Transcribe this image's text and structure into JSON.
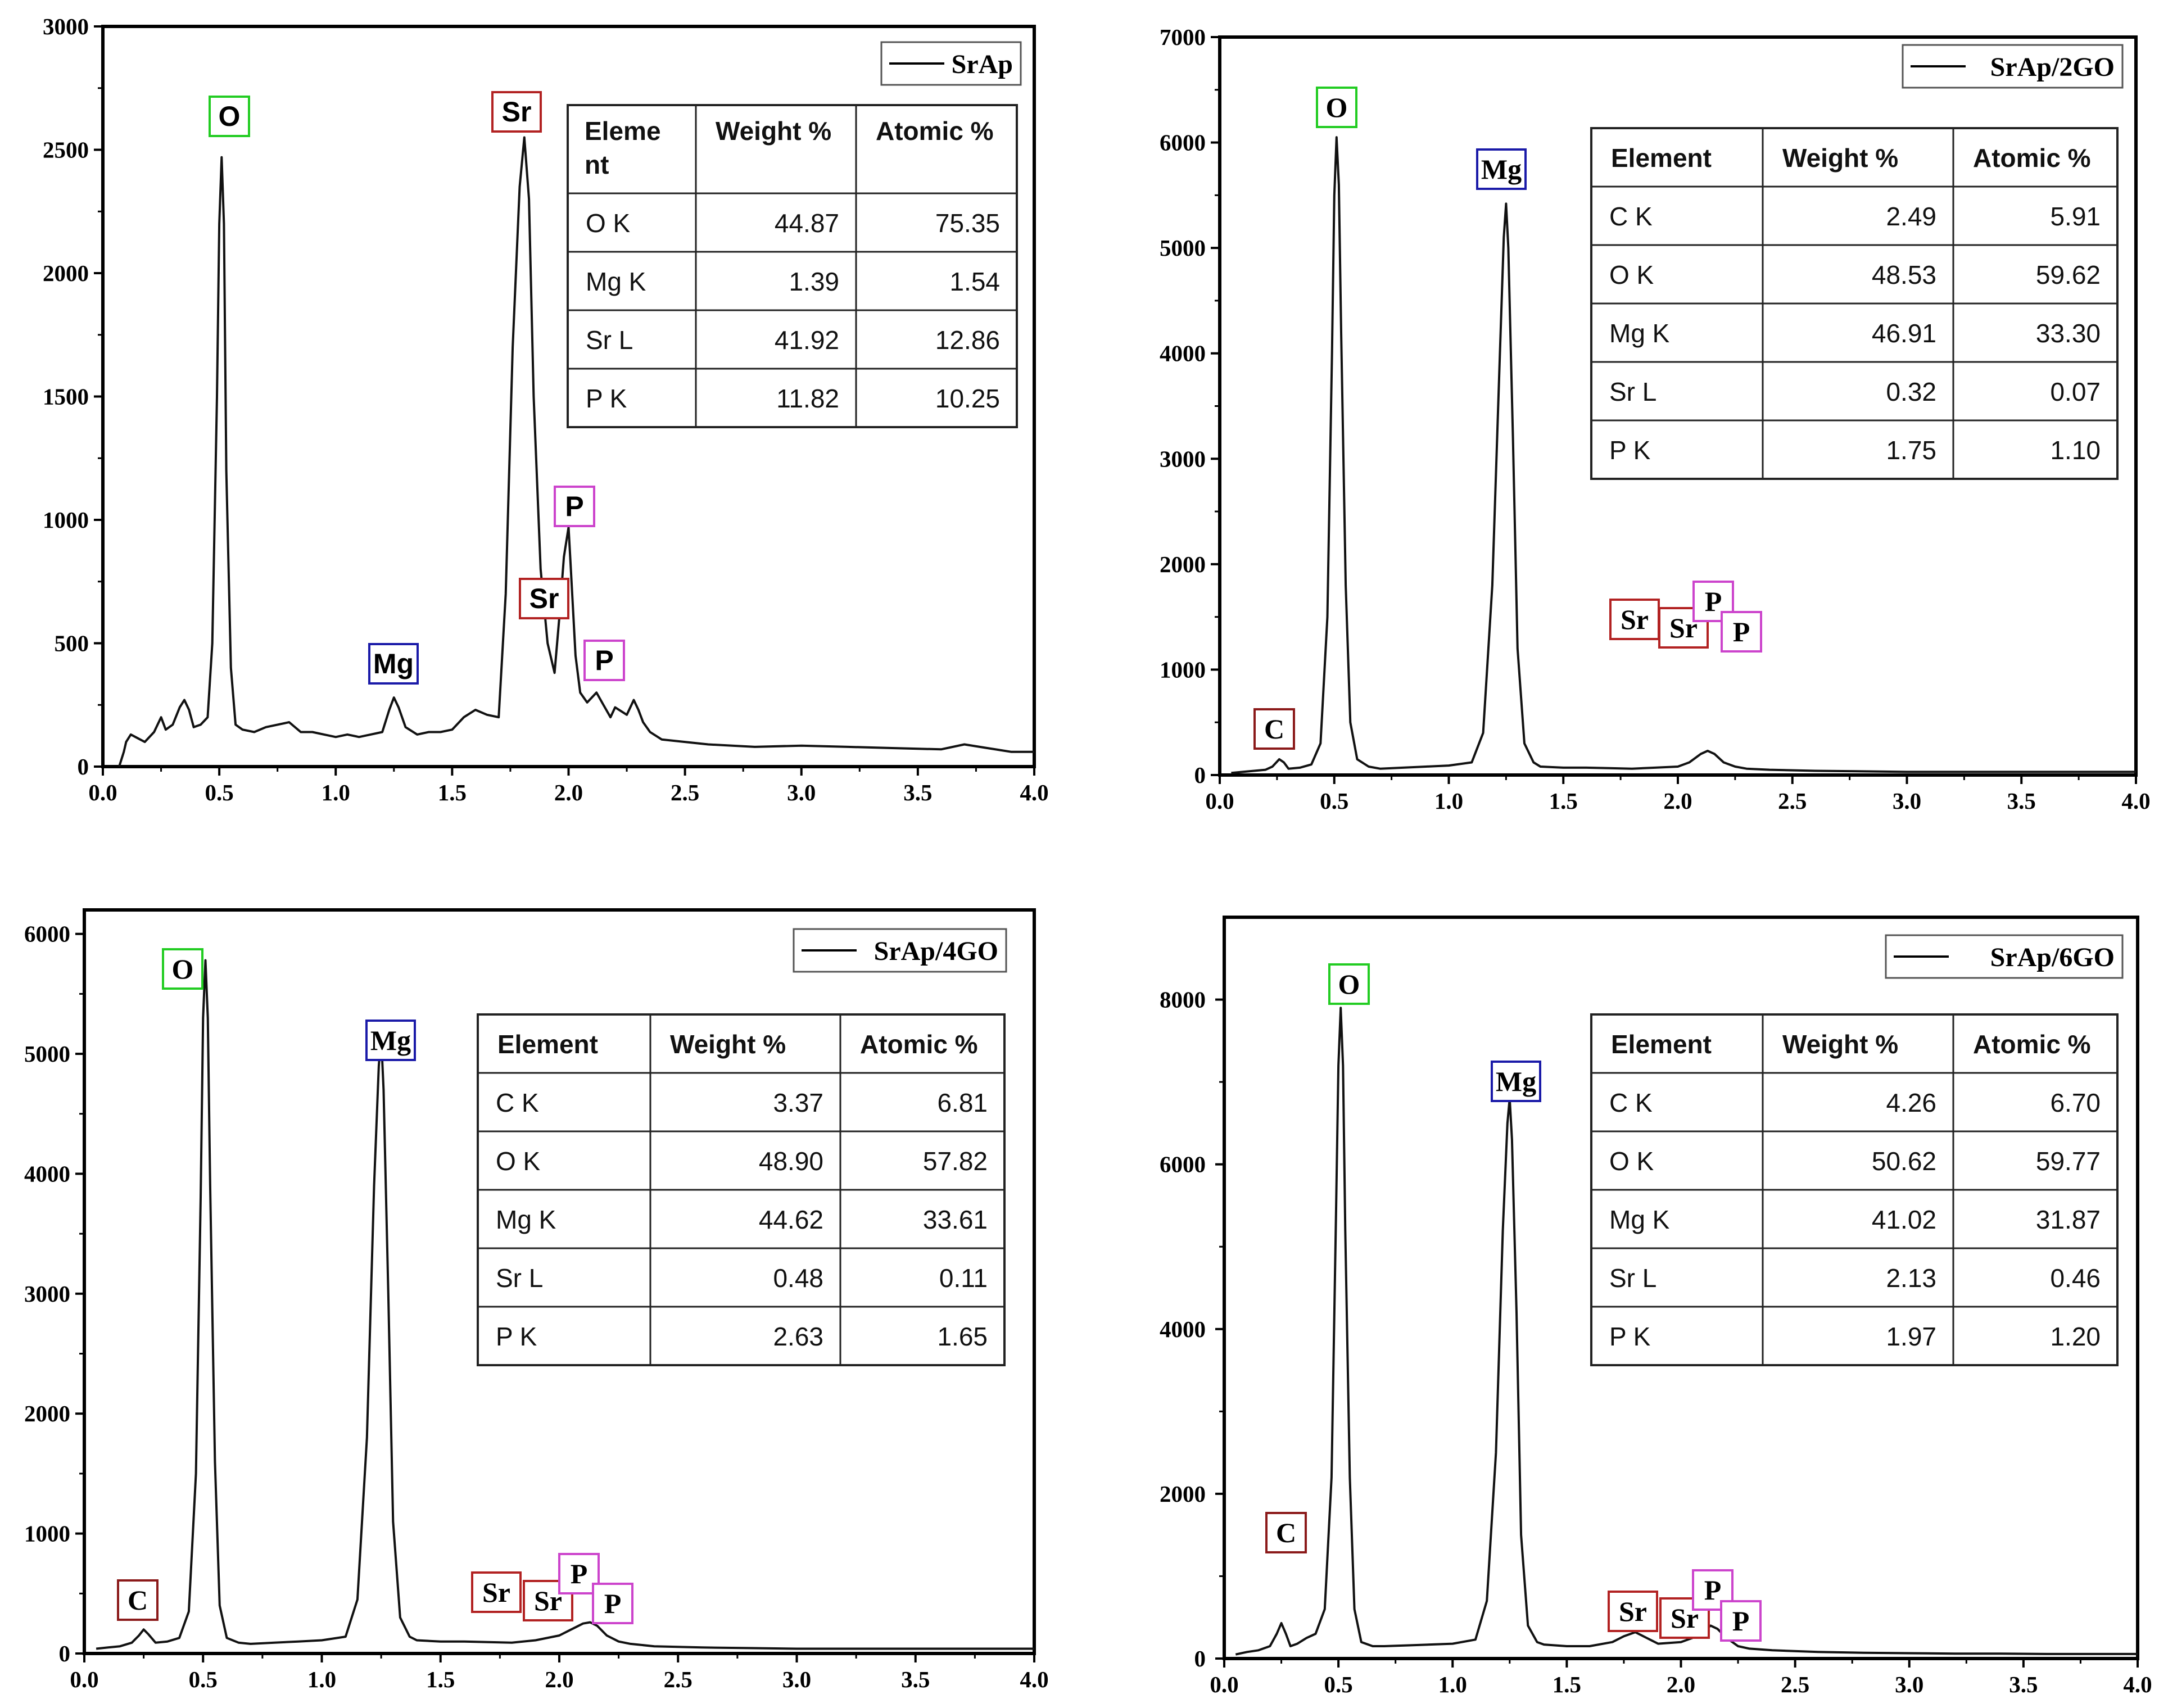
{
  "chart_data": [
    {
      "type": "line",
      "legend": "SrAp",
      "legend_position": "top-right",
      "xlim": [
        0,
        4
      ],
      "ylim": [
        0,
        3000
      ],
      "x_ticks": [
        0.0,
        0.5,
        1.0,
        1.5,
        2.0,
        2.5,
        3.0,
        3.5,
        4.0
      ],
      "x_tick_labels": [
        "0.0",
        "0.5",
        "1.0",
        "1.5",
        "2.0",
        "2.5",
        "3.0",
        "3.5",
        "4.0"
      ],
      "y_ticks": [
        0,
        500,
        1000,
        1500,
        2000,
        2500,
        3000
      ],
      "y_tick_labels": [
        "0",
        "500",
        "1000",
        "1500",
        "2000",
        "2500",
        "3000"
      ],
      "series": [
        {
          "name": "SrAp",
          "x": [
            0.07,
            0.09,
            0.1,
            0.12,
            0.14,
            0.18,
            0.22,
            0.25,
            0.27,
            0.3,
            0.33,
            0.35,
            0.37,
            0.39,
            0.42,
            0.45,
            0.47,
            0.49,
            0.5,
            0.51,
            0.52,
            0.53,
            0.55,
            0.57,
            0.6,
            0.65,
            0.7,
            0.75,
            0.8,
            0.85,
            0.9,
            0.95,
            1.0,
            1.05,
            1.1,
            1.15,
            1.2,
            1.23,
            1.25,
            1.27,
            1.3,
            1.35,
            1.4,
            1.45,
            1.5,
            1.55,
            1.6,
            1.65,
            1.7,
            1.73,
            1.76,
            1.79,
            1.81,
            1.83,
            1.85,
            1.88,
            1.91,
            1.94,
            1.96,
            1.98,
            2.0,
            2.01,
            2.03,
            2.05,
            2.08,
            2.12,
            2.15,
            2.18,
            2.2,
            2.25,
            2.28,
            2.3,
            2.32,
            2.35,
            2.4,
            2.5,
            2.6,
            2.8,
            3.0,
            3.2,
            3.4,
            3.6,
            3.7,
            3.8,
            3.9,
            4.0
          ],
          "y": [
            0,
            60,
            100,
            130,
            120,
            100,
            140,
            200,
            150,
            170,
            240,
            270,
            230,
            160,
            170,
            200,
            500,
            1500,
            2200,
            2470,
            2200,
            1200,
            400,
            170,
            150,
            140,
            160,
            170,
            180,
            140,
            140,
            130,
            120,
            130,
            120,
            130,
            140,
            230,
            280,
            240,
            160,
            130,
            140,
            140,
            150,
            200,
            230,
            210,
            200,
            700,
            1700,
            2350,
            2550,
            2300,
            1500,
            800,
            500,
            380,
            600,
            850,
            970,
            800,
            450,
            300,
            260,
            300,
            250,
            200,
            240,
            210,
            270,
            230,
            180,
            140,
            110,
            100,
            90,
            80,
            85,
            80,
            75,
            70,
            90,
            75,
            60,
            60
          ]
        }
      ],
      "peak_labels": [
        {
          "text": "O",
          "x": 0.51,
          "y": 2470
        },
        {
          "text": "Sr",
          "x": 1.81,
          "y": 2550
        },
        {
          "text": "Mg",
          "x": 1.25,
          "y": 280
        },
        {
          "text": "P",
          "x": 2.0,
          "y": 970
        },
        {
          "text": "Sr",
          "x": 1.92,
          "y": 700
        },
        {
          "text": "P",
          "x": 2.15,
          "y": 300
        }
      ],
      "table": {
        "headers": [
          "Eleme nt",
          "Weight %",
          "Atomic %"
        ],
        "rows": [
          [
            "O K",
            "44.87",
            "75.35"
          ],
          [
            "Mg K",
            "1.39",
            "1.54"
          ],
          [
            "Sr L",
            "41.92",
            "12.86"
          ],
          [
            "P K",
            "11.82",
            "10.25"
          ]
        ]
      }
    },
    {
      "type": "line",
      "legend": "SrAp/2GO",
      "legend_position": "top-right",
      "xlim": [
        0,
        4
      ],
      "ylim": [
        0,
        7000
      ],
      "x_ticks": [
        0.0,
        0.5,
        1.0,
        1.5,
        2.0,
        2.5,
        3.0,
        3.5,
        4.0
      ],
      "x_tick_labels": [
        "0.0",
        "0.5",
        "1.0",
        "1.5",
        "2.0",
        "2.5",
        "3.0",
        "3.5",
        "4.0"
      ],
      "y_ticks": [
        0,
        1000,
        2000,
        3000,
        4000,
        5000,
        6000,
        7000
      ],
      "y_tick_labels": [
        "0",
        "1000",
        "2000",
        "3000",
        "4000",
        "5000",
        "6000",
        "7000"
      ],
      "series": [
        {
          "name": "SrAp/2GO",
          "x": [
            0.05,
            0.1,
            0.15,
            0.2,
            0.23,
            0.26,
            0.28,
            0.3,
            0.35,
            0.4,
            0.44,
            0.47,
            0.49,
            0.5,
            0.51,
            0.52,
            0.53,
            0.55,
            0.57,
            0.6,
            0.65,
            0.7,
            0.8,
            0.9,
            1.0,
            1.1,
            1.15,
            1.19,
            1.22,
            1.24,
            1.25,
            1.26,
            1.28,
            1.3,
            1.33,
            1.37,
            1.4,
            1.5,
            1.6,
            1.7,
            1.8,
            1.9,
            2.0,
            2.05,
            2.1,
            2.13,
            2.16,
            2.2,
            2.25,
            2.3,
            2.4,
            2.6,
            2.8,
            3.0,
            3.2,
            3.4,
            3.6,
            3.8,
            4.0
          ],
          "y": [
            20,
            30,
            40,
            50,
            80,
            150,
            120,
            60,
            70,
            100,
            300,
            1500,
            4000,
            5500,
            6050,
            5600,
            4200,
            1800,
            500,
            150,
            80,
            60,
            70,
            80,
            90,
            120,
            400,
            1800,
            3800,
            5100,
            5420,
            5000,
            3200,
            1200,
            300,
            120,
            80,
            70,
            70,
            65,
            60,
            70,
            80,
            120,
            200,
            230,
            200,
            120,
            80,
            60,
            50,
            40,
            35,
            30,
            30,
            30,
            30,
            30,
            30
          ]
        }
      ],
      "peak_labels": [
        {
          "text": "O",
          "x": 0.51,
          "y": 6050
        },
        {
          "text": "Mg",
          "x": 1.25,
          "y": 5420
        },
        {
          "text": "C",
          "x": 0.25,
          "y": 150
        },
        {
          "text": "Sr",
          "x": 1.8,
          "y": 70
        },
        {
          "text": "Sr",
          "x": 2.0,
          "y": 80
        },
        {
          "text": "P",
          "x": 2.13,
          "y": 230
        },
        {
          "text": "P",
          "x": 2.2,
          "y": 120
        }
      ],
      "table": {
        "headers": [
          "Element",
          "Weight %",
          "Atomic %"
        ],
        "rows": [
          [
            "C K",
            "2.49",
            "5.91"
          ],
          [
            "O K",
            "48.53",
            "59.62"
          ],
          [
            "Mg K",
            "46.91",
            "33.30"
          ],
          [
            "Sr L",
            "0.32",
            "0.07"
          ],
          [
            "P K",
            "1.75",
            "1.10"
          ]
        ]
      }
    },
    {
      "type": "line",
      "legend": "SrAp/4GO",
      "legend_position": "top-right",
      "xlim": [
        0,
        4
      ],
      "ylim": [
        0,
        6200
      ],
      "x_ticks": [
        0.0,
        0.5,
        1.0,
        1.5,
        2.0,
        2.5,
        3.0,
        3.5,
        4.0
      ],
      "x_tick_labels": [
        "0.0",
        "0.5",
        "1.0",
        "1.5",
        "2.0",
        "2.5",
        "3.0",
        "3.5",
        "4.0"
      ],
      "y_ticks": [
        0,
        1000,
        2000,
        3000,
        4000,
        5000,
        6000
      ],
      "y_tick_labels": [
        "0",
        "1000",
        "2000",
        "3000",
        "4000",
        "5000",
        "6000"
      ],
      "series": [
        {
          "name": "SrAp/4GO",
          "x": [
            0.05,
            0.1,
            0.15,
            0.2,
            0.23,
            0.25,
            0.27,
            0.3,
            0.35,
            0.4,
            0.44,
            0.47,
            0.49,
            0.5,
            0.51,
            0.52,
            0.53,
            0.55,
            0.57,
            0.6,
            0.65,
            0.7,
            0.8,
            0.9,
            1.0,
            1.1,
            1.15,
            1.19,
            1.22,
            1.24,
            1.25,
            1.26,
            1.28,
            1.3,
            1.33,
            1.37,
            1.4,
            1.5,
            1.6,
            1.7,
            1.8,
            1.9,
            2.0,
            2.05,
            2.1,
            2.13,
            2.16,
            2.2,
            2.25,
            2.3,
            2.4,
            2.6,
            2.8,
            3.0,
            3.2,
            3.4,
            3.6,
            3.8,
            4.0
          ],
          "y": [
            40,
            50,
            60,
            90,
            150,
            200,
            160,
            90,
            100,
            130,
            350,
            1500,
            3800,
            5300,
            5780,
            5300,
            3900,
            1600,
            400,
            130,
            90,
            80,
            90,
            100,
            110,
            140,
            450,
            1800,
            3900,
            4900,
            5150,
            4700,
            3000,
            1100,
            300,
            140,
            110,
            100,
            100,
            95,
            90,
            110,
            150,
            200,
            250,
            260,
            230,
            150,
            100,
            80,
            60,
            50,
            45,
            40,
            40,
            40,
            40,
            40,
            40
          ]
        }
      ],
      "peak_labels": [
        {
          "text": "O",
          "x": 0.51,
          "y": 5780
        },
        {
          "text": "Mg",
          "x": 1.25,
          "y": 5150
        },
        {
          "text": "C",
          "x": 0.25,
          "y": 200
        },
        {
          "text": "Sr",
          "x": 1.8,
          "y": 90
        },
        {
          "text": "Sr",
          "x": 2.0,
          "y": 150
        },
        {
          "text": "P",
          "x": 2.13,
          "y": 260
        },
        {
          "text": "P",
          "x": 2.2,
          "y": 150
        }
      ],
      "table": {
        "headers": [
          "Element",
          "Weight %",
          "Atomic %"
        ],
        "rows": [
          [
            "C K",
            "3.37",
            "6.81"
          ],
          [
            "O K",
            "48.90",
            "57.82"
          ],
          [
            "Mg K",
            "44.62",
            "33.61"
          ],
          [
            "Sr L",
            "0.48",
            "0.11"
          ],
          [
            "P K",
            "2.63",
            "1.65"
          ]
        ]
      }
    },
    {
      "type": "line",
      "legend": "SrAp/6GO",
      "legend_position": "top-right",
      "xlim": [
        0,
        4
      ],
      "ylim": [
        0,
        9000
      ],
      "x_ticks": [
        0.0,
        0.5,
        1.0,
        1.5,
        2.0,
        2.5,
        3.0,
        3.5,
        4.0
      ],
      "x_tick_labels": [
        "0.0",
        "0.5",
        "1.0",
        "1.5",
        "2.0",
        "2.5",
        "3.0",
        "3.5",
        "4.0"
      ],
      "y_ticks": [
        0,
        2000,
        4000,
        6000,
        8000
      ],
      "y_tick_labels": [
        "0",
        "2000",
        "4000",
        "6000",
        "8000"
      ],
      "series": [
        {
          "name": "SrAp/6GO",
          "x": [
            0.05,
            0.1,
            0.15,
            0.2,
            0.23,
            0.25,
            0.27,
            0.29,
            0.32,
            0.36,
            0.4,
            0.44,
            0.47,
            0.49,
            0.5,
            0.51,
            0.52,
            0.53,
            0.55,
            0.57,
            0.6,
            0.65,
            0.7,
            0.8,
            0.9,
            1.0,
            1.1,
            1.15,
            1.19,
            1.22,
            1.24,
            1.25,
            1.26,
            1.28,
            1.3,
            1.33,
            1.37,
            1.4,
            1.5,
            1.6,
            1.7,
            1.75,
            1.8,
            1.85,
            1.9,
            2.0,
            2.05,
            2.1,
            2.13,
            2.16,
            2.2,
            2.25,
            2.3,
            2.4,
            2.6,
            2.8,
            3.0,
            3.2,
            3.4,
            3.6,
            3.8,
            4.0
          ],
          "y": [
            50,
            80,
            100,
            150,
            300,
            430,
            300,
            150,
            180,
            250,
            300,
            600,
            2200,
            5500,
            7200,
            7900,
            7200,
            5200,
            2200,
            600,
            200,
            150,
            150,
            160,
            170,
            180,
            230,
            700,
            2500,
            5200,
            6500,
            6800,
            6300,
            4200,
            1500,
            400,
            200,
            170,
            150,
            150,
            200,
            270,
            320,
            250,
            180,
            200,
            250,
            330,
            400,
            360,
            250,
            150,
            120,
            100,
            80,
            70,
            65,
            60,
            60,
            55,
            55,
            55
          ]
        }
      ],
      "peak_labels": [
        {
          "text": "O",
          "x": 0.51,
          "y": 7900
        },
        {
          "text": "Mg",
          "x": 1.25,
          "y": 6800
        },
        {
          "text": "C",
          "x": 0.25,
          "y": 430
        },
        {
          "text": "Sr",
          "x": 1.8,
          "y": 320
        },
        {
          "text": "Sr",
          "x": 2.0,
          "y": 200
        },
        {
          "text": "P",
          "x": 2.13,
          "y": 400
        },
        {
          "text": "P",
          "x": 2.2,
          "y": 250
        }
      ],
      "table": {
        "headers": [
          "Element",
          "Weight %",
          "Atomic %"
        ],
        "rows": [
          [
            "C K",
            "4.26",
            "6.70"
          ],
          [
            "O K",
            "50.62",
            "59.77"
          ],
          [
            "Mg K",
            "41.02",
            "31.87"
          ],
          [
            "Sr L",
            "2.13",
            "0.46"
          ],
          [
            "P K",
            "1.97",
            "1.20"
          ]
        ]
      }
    }
  ],
  "colors": {
    "O": "#22cc22",
    "Mg": "#1a1aa8",
    "Sr": "#b22222",
    "C": "#8b1a1a",
    "P": "#cc44cc",
    "line": "#111111"
  }
}
